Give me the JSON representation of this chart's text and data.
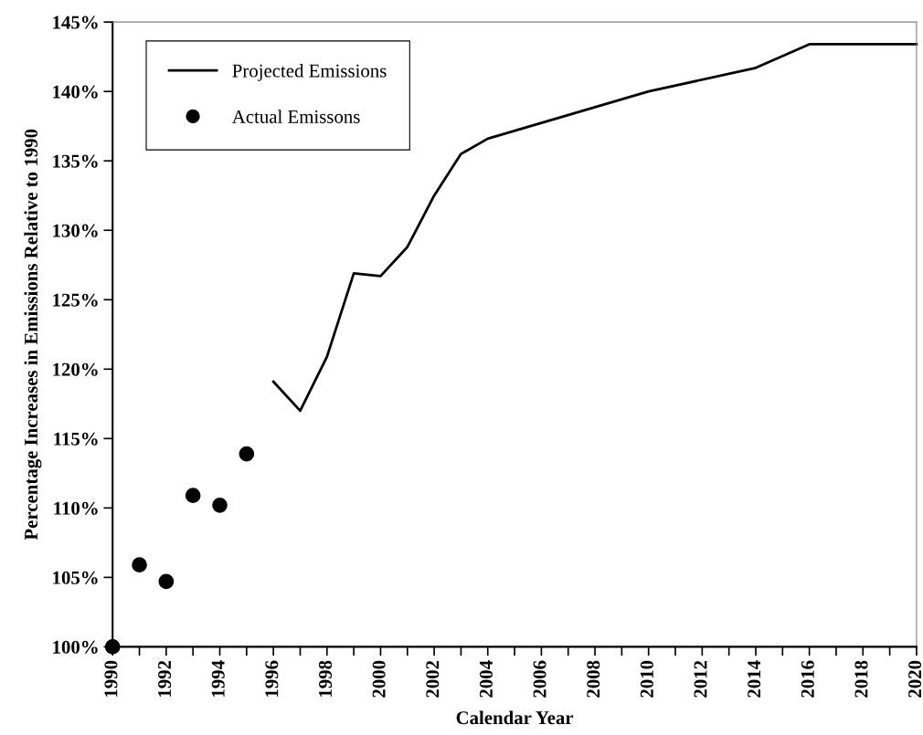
{
  "chart_data": {
    "type": "line",
    "xlabel": "Calendar Year",
    "ylabel": "Percentage Increases in Emissions Relative to 1990",
    "xlim": [
      1990,
      2020
    ],
    "ylim": [
      100,
      145
    ],
    "xticks": [
      1990,
      {
        "value": 1991,
        "label": null
      },
      1992,
      {
        "value": 1993,
        "label": null
      },
      1994,
      {
        "value": 1995,
        "label": null
      },
      1996,
      {
        "value": 1997,
        "label": null
      },
      1998,
      {
        "value": 1999,
        "label": null
      },
      2000,
      {
        "value": 2001,
        "label": null
      },
      2002,
      {
        "value": 2003,
        "label": null
      },
      2004,
      {
        "value": 2005,
        "label": null
      },
      2006,
      {
        "value": 2007,
        "label": null
      },
      2008,
      {
        "value": 2009,
        "label": null
      },
      2010,
      {
        "value": 2011,
        "label": null
      },
      2012,
      {
        "value": 2013,
        "label": null
      },
      2014,
      {
        "value": 2015,
        "label": null
      },
      2016,
      {
        "value": 2017,
        "label": null
      },
      2018,
      {
        "value": 2019,
        "label": null
      },
      2020
    ],
    "yticks": [
      {
        "value": 100,
        "label": "100%"
      },
      {
        "value": 105,
        "label": "105%"
      },
      {
        "value": 110,
        "label": "110%"
      },
      {
        "value": 115,
        "label": "115%"
      },
      {
        "value": 120,
        "label": "120%"
      },
      {
        "value": 125,
        "label": "125%"
      },
      {
        "value": 130,
        "label": "130%"
      },
      {
        "value": 135,
        "label": "135%"
      },
      {
        "value": 140,
        "label": "140%"
      },
      {
        "value": 145,
        "label": "145%"
      }
    ],
    "grid": false,
    "legend": "top left",
    "series": [
      {
        "name": "Projected Emissions",
        "color": "#000000",
        "line_style": "solid",
        "marker": "none",
        "x": [
          1996,
          1997,
          1998,
          1999,
          2000,
          2001,
          2002,
          2003,
          2004,
          2010,
          2014,
          2016,
          2020
        ],
        "values": [
          119.1,
          117.0,
          120.9,
          126.9,
          126.7,
          128.8,
          132.5,
          135.5,
          136.6,
          140.0,
          141.7,
          143.4,
          143.4
        ]
      },
      {
        "name": "Actual Emissons",
        "type": "scatter",
        "color": "#000000",
        "marker": "circle",
        "x": [
          1990,
          1991,
          1992,
          1993,
          1994,
          1995
        ],
        "values": [
          100.0,
          105.9,
          104.7,
          110.9,
          110.2,
          113.9
        ]
      }
    ]
  }
}
